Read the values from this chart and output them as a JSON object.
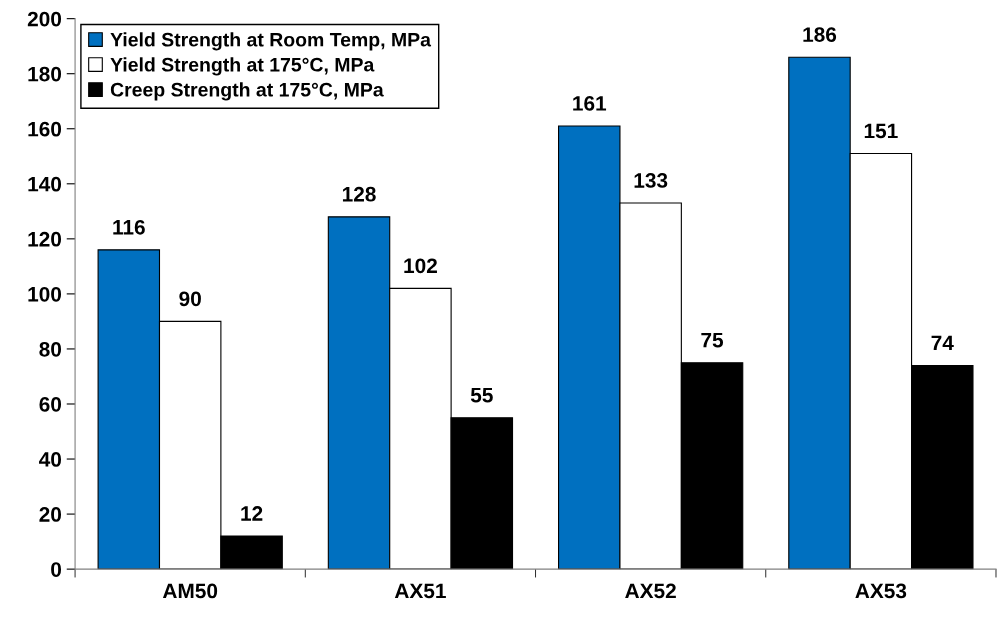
{
  "chart_data": {
    "type": "bar",
    "categories": [
      "AM50",
      "AX51",
      "AX52",
      "AX53"
    ],
    "series": [
      {
        "name": "Yield Strength at Room Temp, MPa",
        "color": "#0070c0",
        "values": [
          116,
          128,
          161,
          186
        ]
      },
      {
        "name": "Yield Strength at 175°C, MPa",
        "color": "#ffffff",
        "values": [
          90,
          102,
          133,
          151
        ]
      },
      {
        "name": "Creep Strength at 175°C, MPa",
        "color": "#000000",
        "values": [
          12,
          55,
          75,
          74
        ]
      }
    ],
    "ylim": [
      0,
      200
    ],
    "yticks": [
      0,
      20,
      40,
      60,
      80,
      100,
      120,
      140,
      160,
      180,
      200
    ],
    "data_labels": true,
    "grid": false,
    "legend": "top left"
  }
}
